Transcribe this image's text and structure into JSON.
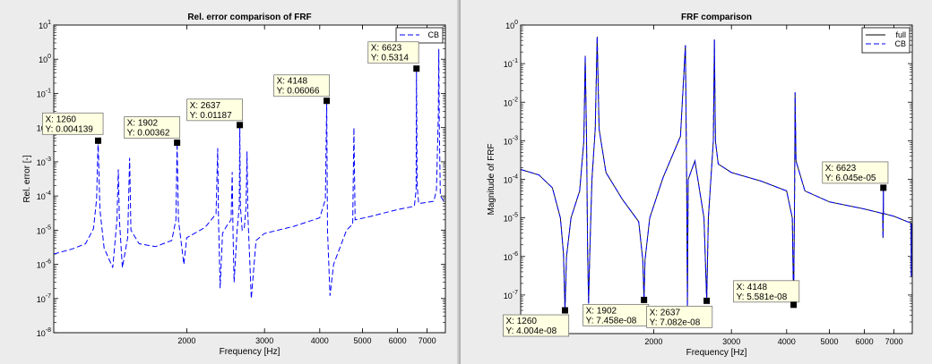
{
  "chart_data": [
    {
      "id": "left",
      "type": "line",
      "title": "Rel. error comparison of FRF",
      "xlabel": "Frequency [Hz]",
      "ylabel": "Rel. error [-]",
      "xscale": "log",
      "yscale": "log",
      "xlim": [
        1000,
        7700
      ],
      "ylim": [
        1e-08,
        10
      ],
      "xticks": [
        2000,
        3000,
        4000,
        5000,
        6000,
        7000
      ],
      "xtick_labels": [
        "2000",
        "3000",
        "4000",
        "5000",
        "6000",
        "7000"
      ],
      "yticks": [
        1e-08,
        1e-07,
        1e-06,
        1e-05,
        0.0001,
        0.001,
        0.01,
        0.1,
        1.0,
        10.0
      ],
      "ytick_labels": [
        [
          "10",
          "-8"
        ],
        [
          "10",
          "-7"
        ],
        [
          "10",
          "-6"
        ],
        [
          "10",
          "-5"
        ],
        [
          "10",
          "-4"
        ],
        [
          "10",
          "-3"
        ],
        [
          "10",
          "-2"
        ],
        [
          "10",
          "-1"
        ],
        [
          "10",
          "0"
        ],
        [
          "10",
          "1"
        ]
      ],
      "grid": false,
      "legend": {
        "placement": "top-right",
        "entries": [
          {
            "label": "CB",
            "style": "dashed",
            "color": "#0000ff"
          }
        ]
      },
      "series": [
        {
          "name": "CB",
          "color": "#0000ff",
          "style": "dashed",
          "points": [
            [
              1000,
              2e-06
            ],
            [
              1100,
              2.8e-06
            ],
            [
              1180,
              4e-06
            ],
            [
              1230,
              1.1e-05
            ],
            [
              1250,
              8e-05
            ],
            [
              1260,
              0.004139
            ],
            [
              1272,
              4e-05
            ],
            [
              1300,
              3e-06
            ],
            [
              1360,
              8e-07
            ],
            [
              1390,
              2e-05
            ],
            [
              1400,
              0.0006
            ],
            [
              1408,
              2e-05
            ],
            [
              1430,
              8e-07
            ],
            [
              1470,
              6e-06
            ],
            [
              1485,
              0.0013
            ],
            [
              1495,
              1e-05
            ],
            [
              1560,
              4e-06
            ],
            [
              1700,
              3.3e-06
            ],
            [
              1850,
              5e-06
            ],
            [
              1890,
              2e-05
            ],
            [
              1902,
              0.00362
            ],
            [
              1915,
              2e-05
            ],
            [
              1950,
              3e-06
            ],
            [
              1970,
              1e-06
            ],
            [
              2000,
              6e-06
            ],
            [
              2200,
              1.2e-05
            ],
            [
              2330,
              3e-05
            ],
            [
              2350,
              0.0025
            ],
            [
              2360,
              2e-05
            ],
            [
              2380,
              2e-07
            ],
            [
              2410,
              8e-06
            ],
            [
              2460,
              1.3e-05
            ],
            [
              2520,
              2e-05
            ],
            [
              2535,
              0.0005
            ],
            [
              2545,
              1e-05
            ],
            [
              2560,
              3e-07
            ],
            [
              2600,
              1e-05
            ],
            [
              2630,
              5e-05
            ],
            [
              2637,
              0.01187
            ],
            [
              2645,
              5e-05
            ],
            [
              2670,
              1e-05
            ],
            [
              2700,
              1.2e-05
            ],
            [
              2725,
              5e-05
            ],
            [
              2738,
              0.002
            ],
            [
              2750,
              3e-05
            ],
            [
              2800,
              1e-07
            ],
            [
              2870,
              5e-06
            ],
            [
              3000,
              8e-06
            ],
            [
              3500,
              1.3e-05
            ],
            [
              4000,
              2.3e-05
            ],
            [
              4120,
              8e-05
            ],
            [
              4148,
              0.06066
            ],
            [
              4165,
              1e-05
            ],
            [
              4220,
              1.2e-07
            ],
            [
              4300,
              1e-06
            ],
            [
              4600,
              1e-05
            ],
            [
              4750,
              1.5e-05
            ],
            [
              4780,
              0.01
            ],
            [
              4810,
              2e-05
            ],
            [
              5200,
              2.5e-05
            ],
            [
              6000,
              4e-05
            ],
            [
              6550,
              5e-05
            ],
            [
              6610,
              0.00015
            ],
            [
              6623,
              0.5314
            ],
            [
              6645,
              0.0002
            ],
            [
              6700,
              6e-05
            ],
            [
              7000,
              6.5e-05
            ],
            [
              7250,
              7e-05
            ],
            [
              7350,
              0.00015
            ],
            [
              7420,
              0.02
            ],
            [
              7440,
              2
            ],
            [
              7460,
              0.01
            ],
            [
              7500,
              0.0001
            ],
            [
              7700,
              6e-05
            ]
          ]
        }
      ],
      "datatips": [
        {
          "label_x": "X: 1260",
          "label_y": "Y: 0.004139",
          "x": 1260,
          "y": 0.004139,
          "box_dx": -62,
          "box_dy": -31,
          "bold": false
        },
        {
          "label_x": "X: 1902",
          "label_y": "Y: 0.00362",
          "x": 1902,
          "y": 0.00362,
          "box_dx": -59,
          "box_dy": -29,
          "bold": true
        },
        {
          "label_x": "X: 2637",
          "label_y": "Y: 0.01187",
          "x": 2637,
          "y": 0.01187,
          "box_dx": -59,
          "box_dy": -29,
          "bold": false
        },
        {
          "label_x": "X: 4148",
          "label_y": "Y: 0.06066",
          "x": 4148,
          "y": 0.06066,
          "box_dx": -59,
          "box_dy": -29,
          "bold": false
        },
        {
          "label_x": "X: 6623",
          "label_y": "Y: 0.5314",
          "x": 6623,
          "y": 0.5314,
          "box_dx": -54,
          "box_dy": -30,
          "bold": false
        }
      ]
    },
    {
      "id": "right",
      "type": "line",
      "title": "FRF comparison",
      "xlabel": "Frequency [Hz]",
      "ylabel": "Magnitude of FRF",
      "xscale": "log",
      "yscale": "log",
      "xlim": [
        1000,
        7700
      ],
      "ylim": [
        1e-08,
        1
      ],
      "xticks": [
        2000,
        3000,
        4000,
        5000,
        6000,
        7000
      ],
      "xtick_labels": [
        "2000",
        "3000",
        "4000",
        "5000",
        "6000",
        "7000"
      ],
      "yticks": [
        1e-08,
        1e-07,
        1e-06,
        1e-05,
        0.0001,
        0.001,
        0.01,
        0.1,
        1.0
      ],
      "ytick_labels": [
        [
          "",
          ""
        ],
        [
          "10",
          "-7"
        ],
        [
          "10",
          "-6"
        ],
        [
          "10",
          "-5"
        ],
        [
          "10",
          "-4"
        ],
        [
          "10",
          "-3"
        ],
        [
          "10",
          "-2"
        ],
        [
          "10",
          "-1"
        ],
        [
          "10",
          "0"
        ]
      ],
      "grid": false,
      "legend": {
        "placement": "top-right",
        "entries": [
          {
            "label": "full",
            "style": "solid",
            "color": "#000000"
          },
          {
            "label": "CB",
            "style": "dashed",
            "color": "#0000ff"
          }
        ]
      },
      "series": [
        {
          "name": "full",
          "color": "#000000",
          "style": "solid",
          "points": [
            [
              1000,
              0.00018
            ],
            [
              1100,
              0.00013
            ],
            [
              1180,
              6e-05
            ],
            [
              1230,
              1e-05
            ],
            [
              1250,
              1.2e-06
            ],
            [
              1260,
              4.004e-08
            ],
            [
              1270,
              1e-06
            ],
            [
              1300,
              1e-05
            ],
            [
              1360,
              5e-05
            ],
            [
              1390,
              0.001
            ],
            [
              1400,
              0.16
            ],
            [
              1410,
              0.001
            ],
            [
              1418,
              1e-06
            ],
            [
              1425,
              6e-08
            ],
            [
              1433,
              1e-06
            ],
            [
              1450,
              0.0001
            ],
            [
              1475,
              0.002
            ],
            [
              1490,
              0.5
            ],
            [
              1505,
              0.002
            ],
            [
              1560,
              0.00015
            ],
            [
              1700,
              3e-05
            ],
            [
              1850,
              8e-06
            ],
            [
              1890,
              8e-07
            ],
            [
              1902,
              7.458e-08
            ],
            [
              1912,
              8e-07
            ],
            [
              1960,
              1e-05
            ],
            [
              2100,
              0.00011
            ],
            [
              2300,
              0.0013
            ],
            [
              2360,
              0.3
            ],
            [
              2375,
              0.00013
            ],
            [
              2385,
              5e-08
            ],
            [
              2395,
              0.0001
            ],
            [
              2480,
              0.0003
            ],
            [
              2600,
              1e-05
            ],
            [
              2637,
              7.082e-08
            ],
            [
              2660,
              1e-05
            ],
            [
              2730,
              0.001
            ],
            [
              2745,
              0.42
            ],
            [
              2760,
              0.001
            ],
            [
              2800,
              0.00025
            ],
            [
              3000,
              0.00015
            ],
            [
              3500,
              9e-05
            ],
            [
              4000,
              5e-05
            ],
            [
              4120,
              1e-05
            ],
            [
              4148,
              5.581e-08
            ],
            [
              4170,
              5e-05
            ],
            [
              4180,
              0.018
            ],
            [
              4200,
              0.0003
            ],
            [
              4400,
              5e-05
            ],
            [
              5000,
              2.6e-05
            ],
            [
              6000,
              1.7e-05
            ],
            [
              6600,
              1.3e-05
            ],
            [
              6610,
              3e-06
            ],
            [
              6620,
              1.3e-05
            ],
            [
              6623,
              6.045e-05
            ],
            [
              6626,
              1.3e-05
            ],
            [
              7000,
              1.1e-05
            ],
            [
              7500,
              8e-06
            ],
            [
              7650,
              7.5e-06
            ],
            [
              7660,
              3e-07
            ],
            [
              7670,
              7e-06
            ],
            [
              7700,
              7e-06
            ]
          ]
        },
        {
          "name": "CB",
          "color": "#0000ff",
          "style": "dashed",
          "points": [
            [
              1000,
              0.00018
            ],
            [
              1100,
              0.00013
            ],
            [
              1180,
              6e-05
            ],
            [
              1230,
              1e-05
            ],
            [
              1250,
              1.2e-06
            ],
            [
              1260,
              4.004e-08
            ],
            [
              1270,
              1e-06
            ],
            [
              1300,
              1e-05
            ],
            [
              1360,
              5e-05
            ],
            [
              1390,
              0.001
            ],
            [
              1400,
              0.16
            ],
            [
              1410,
              0.001
            ],
            [
              1418,
              1e-06
            ],
            [
              1425,
              6e-08
            ],
            [
              1433,
              1e-06
            ],
            [
              1450,
              0.0001
            ],
            [
              1475,
              0.002
            ],
            [
              1490,
              0.5
            ],
            [
              1505,
              0.002
            ],
            [
              1560,
              0.00015
            ],
            [
              1700,
              3e-05
            ],
            [
              1850,
              8e-06
            ],
            [
              1890,
              8e-07
            ],
            [
              1902,
              7.458e-08
            ],
            [
              1912,
              8e-07
            ],
            [
              1960,
              1e-05
            ],
            [
              2100,
              0.00011
            ],
            [
              2300,
              0.0013
            ],
            [
              2360,
              0.3
            ],
            [
              2375,
              0.00013
            ],
            [
              2385,
              5e-08
            ],
            [
              2395,
              0.0001
            ],
            [
              2480,
              0.0003
            ],
            [
              2600,
              1e-05
            ],
            [
              2637,
              7.082e-08
            ],
            [
              2660,
              1e-05
            ],
            [
              2730,
              0.001
            ],
            [
              2745,
              0.42
            ],
            [
              2760,
              0.001
            ],
            [
              2800,
              0.00025
            ],
            [
              3000,
              0.00015
            ],
            [
              3500,
              9e-05
            ],
            [
              4000,
              5e-05
            ],
            [
              4120,
              1e-05
            ],
            [
              4148,
              5.581e-08
            ],
            [
              4170,
              5e-05
            ],
            [
              4180,
              0.018
            ],
            [
              4200,
              0.0003
            ],
            [
              4400,
              5e-05
            ],
            [
              5000,
              2.6e-05
            ],
            [
              6000,
              1.7e-05
            ],
            [
              6600,
              1.3e-05
            ],
            [
              6610,
              3e-06
            ],
            [
              6620,
              1.3e-05
            ],
            [
              6623,
              6.045e-05
            ],
            [
              6626,
              1.3e-05
            ],
            [
              7000,
              1.1e-05
            ],
            [
              7500,
              8e-06
            ],
            [
              7650,
              7.5e-06
            ],
            [
              7660,
              3e-07
            ],
            [
              7670,
              7e-06
            ],
            [
              7700,
              7e-06
            ]
          ]
        }
      ],
      "datatips": [
        {
          "label_x": "X: 1260",
          "label_y": "Y: 4.004e-08",
          "x": 1260,
          "y": 4.004e-08,
          "box_dx": -69,
          "box_dy": 5,
          "bold": true
        },
        {
          "label_x": "X: 1902",
          "label_y": "Y: 7.458e-08",
          "x": 1902,
          "y": 7.458e-08,
          "box_dx": -68,
          "box_dy": 5,
          "bold": false
        },
        {
          "label_x": "X: 2637",
          "label_y": "Y: 7.082e-08",
          "x": 2637,
          "y": 7.082e-08,
          "box_dx": -67,
          "box_dy": 6,
          "bold": false
        },
        {
          "label_x": "X: 4148",
          "label_y": "Y: 5.581e-08",
          "x": 4148,
          "y": 5.581e-08,
          "box_dx": -67,
          "box_dy": -27,
          "bold": false
        },
        {
          "label_x": "X: 6623",
          "label_y": "Y: 6.045e-05",
          "x": 6623,
          "y": 6.045e-05,
          "box_dx": -68,
          "box_dy": -29,
          "bold": false
        }
      ]
    }
  ]
}
